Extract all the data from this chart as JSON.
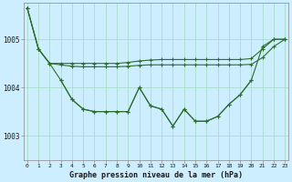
{
  "title": "Graphe pression niveau de la mer (hPa)",
  "bg_color": "#cceeff",
  "grid_color": "#aaddcc",
  "line_color": "#2d6e2d",
  "ylim": [
    1002.5,
    1005.75
  ],
  "yticks": [
    1003,
    1004,
    1005
  ],
  "ytick_labels": [
    "1003",
    "1004",
    "1005"
  ],
  "x_labels": [
    "0",
    "1",
    "2",
    "3",
    "4",
    "5",
    "6",
    "7",
    "8",
    "9",
    "10",
    "11",
    "12",
    "13",
    "14",
    "15",
    "16",
    "17",
    "18",
    "19",
    "20",
    "21",
    "22",
    "23"
  ],
  "series": {
    "actual": [
      1005.65,
      1004.8,
      1004.5,
      1004.15,
      1003.75,
      1003.55,
      1003.5,
      1003.5,
      1003.5,
      1003.5,
      1004.0,
      1003.62,
      1003.55,
      1003.2,
      1003.55,
      1003.3,
      1003.3,
      1003.4,
      1003.65,
      1003.85,
      1004.15,
      1004.85,
      1005.0,
      1005.0
    ],
    "max": [
      1005.65,
      1004.8,
      1004.5,
      1004.5,
      1004.5,
      1004.5,
      1004.5,
      1004.5,
      1004.5,
      1004.52,
      1004.55,
      1004.57,
      1004.58,
      1004.58,
      1004.58,
      1004.58,
      1004.58,
      1004.58,
      1004.58,
      1004.58,
      1004.6,
      1004.8,
      1005.0,
      1005.0
    ],
    "avg": [
      1005.65,
      1004.8,
      1004.5,
      1004.47,
      1004.44,
      1004.43,
      1004.43,
      1004.43,
      1004.43,
      1004.44,
      1004.46,
      1004.47,
      1004.47,
      1004.47,
      1004.47,
      1004.47,
      1004.47,
      1004.47,
      1004.47,
      1004.47,
      1004.48,
      1004.62,
      1004.85,
      1005.0
    ],
    "min": [
      null,
      null,
      null,
      1004.15,
      1003.75,
      1003.55,
      1003.5,
      1003.5,
      1003.5,
      1003.5,
      1004.0,
      1003.62,
      1003.55,
      1003.2,
      1003.55,
      1003.3,
      1003.3,
      1003.4,
      1003.65,
      1003.85,
      1004.15,
      null,
      null,
      null
    ]
  }
}
